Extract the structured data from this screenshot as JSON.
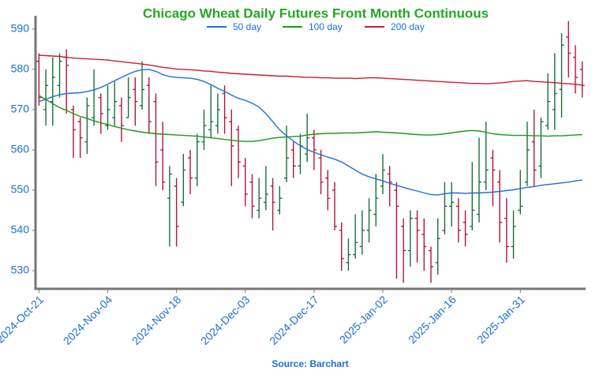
{
  "chart_data": {
    "type": "ohlc",
    "title": "Chicago Wheat Daily Futures Front Month Continuous",
    "source": "Source: Barchart",
    "categories": [
      "2024-Oct-21",
      null,
      null,
      null,
      null,
      null,
      null,
      null,
      null,
      null,
      "2024-Nov-04",
      null,
      null,
      null,
      null,
      null,
      null,
      null,
      null,
      null,
      "2024-Nov-18",
      null,
      null,
      null,
      null,
      null,
      null,
      null,
      null,
      null,
      "2024-Dec-03",
      null,
      null,
      null,
      null,
      null,
      null,
      null,
      null,
      null,
      "2024-Dec-17",
      null,
      null,
      null,
      null,
      null,
      null,
      null,
      null,
      null,
      "2025-Jan-02",
      null,
      null,
      null,
      null,
      null,
      null,
      null,
      null,
      null,
      "2025-Jan-16",
      null,
      null,
      null,
      null,
      null,
      null,
      null,
      null,
      null,
      "2025-Jan-31",
      null,
      null,
      null,
      null,
      null,
      null,
      null,
      null,
      null
    ],
    "ohlc": {
      "open": [
        582,
        570,
        572,
        576,
        583,
        570,
        567,
        562,
        568,
        573,
        566,
        568,
        571,
        568,
        575,
        571,
        576,
        572,
        560,
        548,
        551,
        547,
        558,
        553,
        562,
        565,
        566,
        574,
        567,
        565,
        556,
        552,
        545,
        547,
        551,
        545,
        553,
        560,
        556,
        559,
        563,
        558,
        553,
        550,
        540,
        532,
        534,
        536,
        540,
        544,
        551,
        554,
        550,
        541,
        535,
        543,
        539,
        535,
        532,
        540,
        546,
        546,
        542,
        541,
        544,
        552,
        558,
        552,
        543,
        536,
        545,
        552,
        562,
        556,
        566,
        570,
        575,
        588,
        583,
        580
      ],
      "high": [
        584,
        580,
        583,
        584,
        585,
        571,
        568,
        573,
        580,
        574,
        576,
        577,
        573,
        578,
        578,
        582,
        578,
        574,
        567,
        556,
        553,
        559,
        560,
        564,
        570,
        576,
        574,
        576,
        570,
        566,
        558,
        554,
        553,
        556,
        553,
        551,
        566,
        562,
        564,
        569,
        565,
        560,
        555,
        552,
        542,
        538,
        544,
        545,
        548,
        554,
        559,
        556,
        552,
        543,
        545,
        545,
        543,
        536,
        543,
        552,
        552,
        548,
        545,
        557,
        563,
        567,
        560,
        555,
        548,
        545,
        555,
        567,
        570,
        568,
        579,
        584,
        589,
        592,
        586,
        582
      ],
      "low": [
        571,
        566,
        566,
        573,
        569,
        558,
        558,
        559,
        566,
        564,
        565,
        566,
        562,
        568,
        566,
        570,
        564,
        551,
        550,
        536,
        536,
        546,
        549,
        551,
        560,
        563,
        564,
        564,
        551,
        553,
        546,
        543,
        543,
        545,
        540,
        544,
        552,
        553,
        554,
        557,
        555,
        549,
        545,
        540,
        530,
        530,
        533,
        534,
        537,
        541,
        549,
        546,
        528,
        527,
        531,
        532,
        530,
        527,
        529,
        539,
        541,
        537,
        536,
        540,
        542,
        550,
        546,
        537,
        532,
        533,
        544,
        551,
        551,
        553,
        565,
        565,
        568,
        578,
        574,
        573
      ],
      "close": [
        573,
        576,
        578,
        582,
        581,
        565,
        563,
        571,
        575,
        569,
        570,
        572,
        566,
        573,
        572,
        575,
        567,
        557,
        552,
        554,
        541,
        555,
        553,
        562,
        566,
        567,
        570,
        568,
        561,
        557,
        549,
        546,
        548,
        549,
        547,
        548,
        558,
        556,
        561,
        563,
        560,
        552,
        548,
        541,
        533,
        534,
        537,
        540,
        545,
        548,
        555,
        552,
        546,
        535,
        543,
        540,
        536,
        531,
        538,
        546,
        547,
        540,
        539,
        545,
        552,
        555,
        555,
        542,
        536,
        541,
        546,
        560,
        555,
        567,
        572,
        574,
        586,
        584,
        578,
        576
      ],
      "up_color": "#1a6e3a",
      "down_color": "#b0163a"
    },
    "series": [
      {
        "name": "50 day",
        "color": "#1c6fd8",
        "values": [
          572.0,
          572.6,
          573.2,
          573.7,
          574.0,
          574.1,
          574.2,
          574.5,
          574.9,
          575.5,
          576.3,
          577.2,
          578.0,
          578.8,
          579.5,
          579.9,
          580.0,
          579.5,
          578.7,
          578.2,
          578.0,
          577.9,
          577.8,
          577.5,
          577.0,
          576.2,
          575.3,
          574.5,
          573.6,
          572.8,
          572.3,
          571.6,
          570.6,
          569.0,
          567.0,
          565.0,
          563.5,
          562.2,
          561.0,
          560.1,
          559.4,
          558.8,
          558.2,
          557.7,
          557.0,
          556.0,
          555.0,
          554.0,
          553.3,
          552.8,
          552.3,
          551.7,
          551.2,
          550.7,
          550.2,
          549.8,
          549.3,
          548.9,
          548.8,
          549.1,
          549.3,
          549.3,
          549.2,
          549.3,
          549.3,
          549.4,
          549.5,
          549.7,
          549.9,
          550.1,
          550.4,
          550.7,
          550.9,
          551.2,
          551.4,
          551.6,
          551.8,
          552.0,
          552.3,
          552.5
        ]
      },
      {
        "name": "100 day",
        "color": "#1a9a1a",
        "values": [
          573.5,
          572.5,
          571.5,
          570.5,
          569.8,
          569.0,
          568.3,
          567.8,
          567.2,
          566.7,
          566.3,
          565.8,
          565.4,
          565.0,
          564.7,
          564.4,
          564.2,
          564.0,
          563.9,
          563.8,
          563.7,
          563.6,
          563.5,
          563.4,
          563.2,
          563.0,
          562.8,
          562.6,
          562.4,
          562.2,
          562.1,
          562.1,
          562.3,
          562.6,
          562.9,
          563.1,
          563.2,
          563.3,
          563.4,
          563.7,
          563.9,
          564.0,
          564.1,
          564.1,
          564.2,
          564.2,
          564.2,
          564.3,
          564.4,
          564.5,
          564.4,
          564.3,
          564.2,
          564.1,
          563.9,
          563.8,
          563.7,
          563.7,
          563.8,
          564.0,
          564.2,
          564.5,
          564.7,
          564.8,
          564.7,
          564.4,
          564.0,
          563.8,
          563.7,
          563.6,
          563.6,
          563.6,
          563.5,
          563.5,
          563.4,
          563.5,
          563.5,
          563.6,
          563.7,
          563.8
        ]
      },
      {
        "name": "200 day",
        "color": "#d0193a",
        "values": [
          583.5,
          583.4,
          583.3,
          583.2,
          583.0,
          582.8,
          582.7,
          582.6,
          582.5,
          582.4,
          582.3,
          582.1,
          581.9,
          581.7,
          581.5,
          581.3,
          581.1,
          580.8,
          580.5,
          580.3,
          580.1,
          580.0,
          579.9,
          579.8,
          579.6,
          579.5,
          579.3,
          579.2,
          579.0,
          578.9,
          578.8,
          578.7,
          578.6,
          578.5,
          578.4,
          578.3,
          578.3,
          578.2,
          578.1,
          578.0,
          578.0,
          577.9,
          577.9,
          577.8,
          577.8,
          577.8,
          577.7,
          577.8,
          577.9,
          577.9,
          577.8,
          577.7,
          577.6,
          577.5,
          577.4,
          577.3,
          577.2,
          577.1,
          577.0,
          576.9,
          576.8,
          576.7,
          576.6,
          576.5,
          576.5,
          576.4,
          576.5,
          576.6,
          576.8,
          577.0,
          577.1,
          577.2,
          577.0,
          576.9,
          576.8,
          576.7,
          576.5,
          576.4,
          576.3,
          576.1
        ]
      }
    ],
    "ylim": [
      525.5,
      593.3
    ],
    "yticks": [
      530,
      540,
      550,
      560,
      570,
      580,
      590
    ],
    "title_color": "#22a822",
    "label_color": "#1c6fd8",
    "axis_color": "#777777"
  }
}
